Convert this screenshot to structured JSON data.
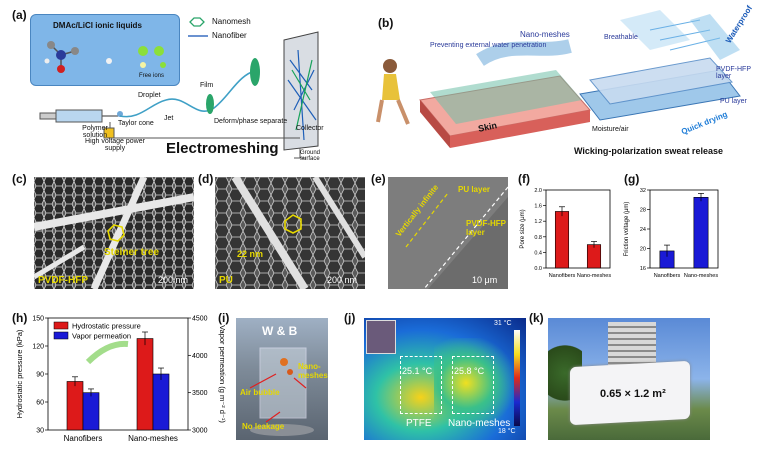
{
  "panel_labels": {
    "a": "(a)",
    "b": "(b)",
    "c": "(c)",
    "d": "(d)",
    "e": "(e)",
    "f": "(f)",
    "g": "(g)",
    "h": "(h)",
    "i": "(i)",
    "j": "(j)",
    "k": "(k)"
  },
  "panel_a": {
    "liquids": "DMAc/LiCl ionic liquids",
    "free_ions": "Free ions",
    "legend_nanomesh": "Nanomesh",
    "legend_nanofiber": "Nanofiber",
    "polymer_solution": "Polymer solution",
    "taylor_cone": "Taylor cone",
    "droplet": "Droplet",
    "jet": "Jet",
    "film": "Film",
    "deform": "Deform/phase separate",
    "collector": "Collector",
    "hv_supply": "High voltage power supply",
    "ground": "Ground surface",
    "title": "Electromeshing"
  },
  "panel_b": {
    "preventing": "Preventing external water penetration",
    "nanomeshes": "Nano-meshes",
    "breathable": "Breathable",
    "waterproof": "Waterproof",
    "pvdf_layer": "PVDF-HFP layer",
    "pu_layer": "PU layer",
    "quick_drying": "Quick drying",
    "skin": "Skin",
    "moisture": "Moisture/air",
    "caption": "Wicking-polarization sweat release"
  },
  "panel_c": {
    "label": "Steiner tree",
    "material": "PVDF-HFP",
    "scale": "200 nm"
  },
  "panel_d": {
    "label": "22 nm",
    "material": "PU",
    "scale": "200 nm"
  },
  "panel_e": {
    "vertical": "Vertically infinite",
    "pu_layer": "PU layer",
    "pvdf_layer": "PVDF-HFP layer",
    "scale": "10 μm"
  },
  "panel_i": {
    "title": "W & B",
    "bubble": "Air bubble",
    "nanomeshes": "Nano-meshes",
    "no_leakage": "No leakage"
  },
  "panel_j": {
    "temp_top": "31 °C",
    "temp_bottom": "18 °C",
    "left_temp": "25.1 °C",
    "right_temp": "25.8 °C",
    "left_label": "PTFE",
    "right_label": "Nano-meshes"
  },
  "panel_k": {
    "size": "0.65 × 1.2 m²"
  },
  "colors": {
    "red": "#dd1a1a",
    "blue": "#1a1ad6",
    "yellow": "#e6d800"
  },
  "chart_data": [
    {
      "id": "f",
      "type": "bar",
      "categories": [
        "Nanofibers",
        "Nano-meshes"
      ],
      "values": [
        1.45,
        0.6
      ],
      "errors": [
        0.12,
        0.08
      ],
      "colors": [
        "#dd1a1a",
        "#dd1a1a"
      ],
      "ylabel": "Pore size (μm)",
      "ylim": [
        0,
        2.0
      ],
      "yticks": [
        "0.0",
        "0.4",
        "0.8",
        "1.2",
        "1.6",
        "2.0"
      ]
    },
    {
      "id": "g",
      "type": "bar",
      "categories": [
        "Nanofibers",
        "Nano-meshes"
      ],
      "values": [
        19.5,
        30.5
      ],
      "errors": [
        1.2,
        0.8
      ],
      "colors": [
        "#1a1ad6",
        "#1a1ad6"
      ],
      "ylabel": "Friction voltage (μm)",
      "ylim": [
        16,
        32
      ],
      "yticks": [
        "16",
        "20",
        "24",
        "28",
        "32"
      ]
    },
    {
      "id": "h",
      "type": "bar",
      "categories": [
        "Nanofibers",
        "Nano-meshes"
      ],
      "series": [
        {
          "name": "Hydrostatic pressure",
          "values": [
            82,
            128
          ],
          "errors": [
            5,
            7
          ],
          "color": "#dd1a1a",
          "axis": "left"
        },
        {
          "name": "Vapor permeation",
          "values": [
            3500,
            3750
          ],
          "errors": [
            50,
            80
          ],
          "color": "#1a1ad6",
          "axis": "right"
        }
      ],
      "ylabel": "Hydrostatic pressure (kPa)",
      "ylim": [
        30,
        150
      ],
      "yticks": [
        "30",
        "60",
        "90",
        "120",
        "150"
      ],
      "y2label": "Vapor permeation (g m⁻² d⁻¹)",
      "y2lim": [
        3000,
        4500
      ],
      "y2ticks": [
        "3000",
        "3500",
        "4000",
        "4500"
      ]
    }
  ]
}
